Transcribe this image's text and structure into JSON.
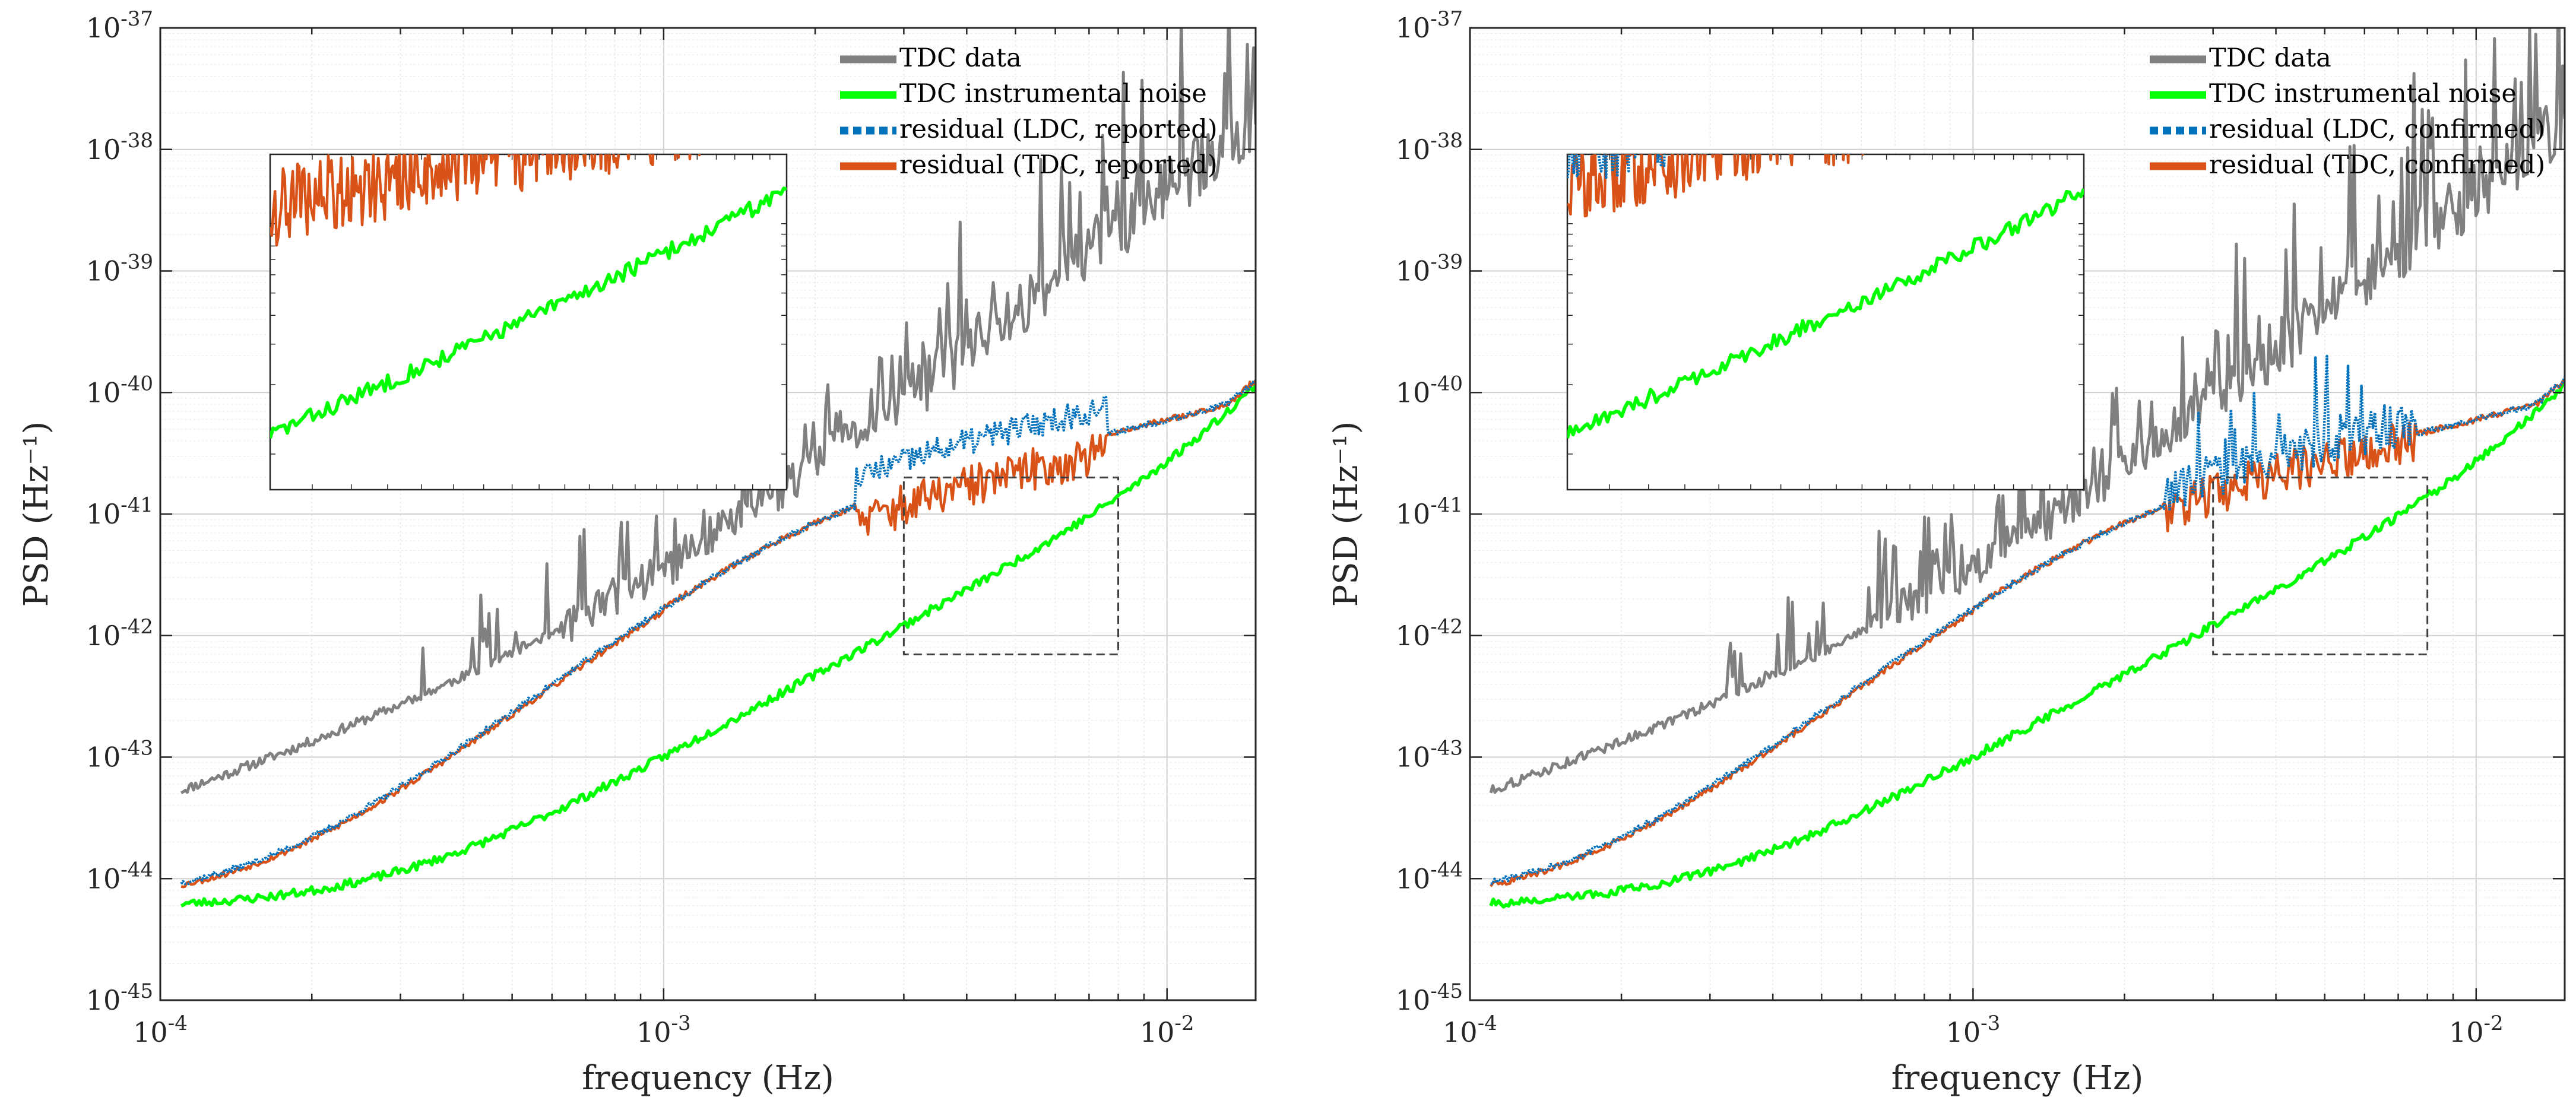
{
  "chart_data": [
    {
      "type": "line",
      "xscale": "log",
      "yscale": "log",
      "xlabel": "frequency (Hz)",
      "ylabel": "PSD (Hz⁻¹)",
      "xlim": [
        0.0001,
        0.015
      ],
      "ylim": [
        1e-45,
        1e-37
      ],
      "x_ticks": [
        {
          "mantissa": "10",
          "exp": "-4"
        },
        {
          "mantissa": "10",
          "exp": "-3"
        },
        {
          "mantissa": "10",
          "exp": "-2"
        }
      ],
      "y_ticks": [
        {
          "mantissa": "10",
          "exp": "-45"
        },
        {
          "mantissa": "10",
          "exp": "-44"
        },
        {
          "mantissa": "10",
          "exp": "-43"
        },
        {
          "mantissa": "10",
          "exp": "-42"
        },
        {
          "mantissa": "10",
          "exp": "-41"
        },
        {
          "mantissa": "10",
          "exp": "-40"
        },
        {
          "mantissa": "10",
          "exp": "-39"
        },
        {
          "mantissa": "10",
          "exp": "-38"
        },
        {
          "mantissa": "10",
          "exp": "-37"
        }
      ],
      "grid": true,
      "legend_position": "top-right",
      "series": [
        {
          "name": "TDC data",
          "color": "#808080",
          "style": "solid"
        },
        {
          "name": "TDC instrumental noise",
          "color": "#00ff00",
          "style": "solid"
        },
        {
          "name": "residual (LDC, reported)",
          "color": "#0072BD",
          "style": "dotted"
        },
        {
          "name": "residual (TDC, reported)",
          "color": "#D95319",
          "style": "solid"
        }
      ],
      "zoom_box": {
        "xlim": [
          0.003,
          0.008
        ],
        "ylim": [
          7e-43,
          2e-41
        ]
      }
    },
    {
      "type": "line",
      "xscale": "log",
      "yscale": "log",
      "xlabel": "frequency (Hz)",
      "ylabel": "PSD (Hz⁻¹)",
      "xlim": [
        0.0001,
        0.015
      ],
      "ylim": [
        1e-45,
        1e-37
      ],
      "x_ticks": [
        {
          "mantissa": "10",
          "exp": "-4"
        },
        {
          "mantissa": "10",
          "exp": "-3"
        },
        {
          "mantissa": "10",
          "exp": "-2"
        }
      ],
      "y_ticks": [
        {
          "mantissa": "10",
          "exp": "-45"
        },
        {
          "mantissa": "10",
          "exp": "-44"
        },
        {
          "mantissa": "10",
          "exp": "-43"
        },
        {
          "mantissa": "10",
          "exp": "-42"
        },
        {
          "mantissa": "10",
          "exp": "-41"
        },
        {
          "mantissa": "10",
          "exp": "-40"
        },
        {
          "mantissa": "10",
          "exp": "-39"
        },
        {
          "mantissa": "10",
          "exp": "-38"
        },
        {
          "mantissa": "10",
          "exp": "-37"
        }
      ],
      "grid": true,
      "legend_position": "top-right",
      "series": [
        {
          "name": "TDC data",
          "color": "#808080",
          "style": "solid"
        },
        {
          "name": "TDC instrumental noise",
          "color": "#00ff00",
          "style": "solid"
        },
        {
          "name": "residual (LDC, confirmed)",
          "color": "#0072BD",
          "style": "dotted"
        },
        {
          "name": "residual (TDC, confirmed)",
          "color": "#D95319",
          "style": "solid"
        }
      ],
      "zoom_box": {
        "xlim": [
          0.003,
          0.008
        ],
        "ylim": [
          7e-43,
          2e-41
        ]
      }
    }
  ]
}
